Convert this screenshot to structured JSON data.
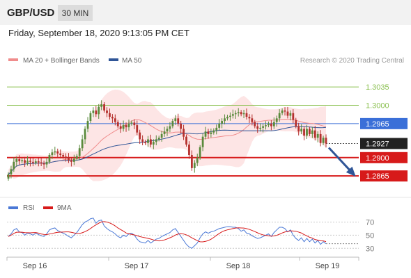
{
  "header": {
    "symbol": "GBP/USD",
    "timeframe": "30 MIN"
  },
  "datetime": "Friday, September 18, 2020 9:13:05 PM CET",
  "legend": [
    {
      "label": "MA 20 + Bollinger Bands",
      "color": "#f08c8c"
    },
    {
      "label": "MA 50",
      "color": "#2f5597"
    }
  ],
  "copyright": "Research © 2020 Trading Central",
  "colors": {
    "up_candle": "#5a8a3c",
    "down_candle": "#b5312e",
    "bands_fill": "#fde0e0",
    "ma20": "#f08c8c",
    "ma50": "#2f5597",
    "support": "#d71a1a",
    "resistance": "#8cc152",
    "pivot": "#3a6fd8",
    "current": "#222222",
    "arrow": "#2f5597",
    "rsi": "#4a78d6",
    "rsi_ma": "#d71a1a"
  },
  "chart_data": [
    {
      "type": "candlestick",
      "y_range": [
        1.284,
        1.3075
      ],
      "x_labels": [
        "Sep 16",
        "Sep 17",
        "Sep 18",
        "Sep 19"
      ],
      "levels": [
        {
          "value": 1.3035,
          "label": "1.3035",
          "kind": "resistance"
        },
        {
          "value": 1.3,
          "label": "1.3000",
          "kind": "resistance"
        },
        {
          "value": 1.2965,
          "label": "1.2965",
          "kind": "pivot"
        },
        {
          "value": 1.2927,
          "label": "1.2927",
          "kind": "current"
        },
        {
          "value": 1.29,
          "label": "1.2900",
          "kind": "support"
        },
        {
          "value": 1.2865,
          "label": "1.2865",
          "kind": "support"
        }
      ],
      "close": [
        1.2868,
        1.2878,
        1.2892,
        1.2897,
        1.2893,
        1.2895,
        1.289,
        1.2894,
        1.2892,
        1.289,
        1.2893,
        1.2891,
        1.2889,
        1.2887,
        1.2892,
        1.2905,
        1.291,
        1.2912,
        1.2908,
        1.2905,
        1.2902,
        1.29,
        1.2895,
        1.2892,
        1.2898,
        1.2903,
        1.2918,
        1.2935,
        1.2955,
        1.297,
        1.2985,
        1.299,
        1.2983,
        1.2997,
        1.3002,
        1.299,
        1.2985,
        1.2978,
        1.2975,
        1.2968,
        1.296,
        1.2955,
        1.2962,
        1.2958,
        1.2965,
        1.2967,
        1.2962,
        1.2948,
        1.2935,
        1.293,
        1.2928,
        1.2935,
        1.2925,
        1.293,
        1.2935,
        1.2938,
        1.2945,
        1.295,
        1.2955,
        1.296,
        1.297,
        1.2975,
        1.2965,
        1.2955,
        1.294,
        1.2925,
        1.2905,
        1.288,
        1.289,
        1.29,
        1.292,
        1.294,
        1.295,
        1.2945,
        1.2948,
        1.2952,
        1.2957,
        1.2965,
        1.297,
        1.2975,
        1.2978,
        1.298,
        1.2983,
        1.2985,
        1.2987,
        1.2983,
        1.2985,
        1.2978,
        1.2975,
        1.2968,
        1.296,
        1.2955,
        1.2957,
        1.296,
        1.2962,
        1.2965,
        1.296,
        1.2968,
        1.2975,
        1.2985,
        1.299,
        1.2988,
        1.298,
        1.2985,
        1.2972,
        1.296,
        1.295,
        1.2955,
        1.2942,
        1.2955,
        1.2945,
        1.2952,
        1.2938,
        1.2945,
        1.2928,
        1.2938,
        1.2927
      ],
      "rsi_range": [
        25,
        80
      ],
      "rsi_levels": [
        70,
        50,
        30
      ],
      "rsi": [
        48,
        52,
        58,
        60,
        55,
        54,
        50,
        53,
        52,
        50,
        53,
        51,
        49,
        48,
        52,
        58,
        60,
        61,
        57,
        55,
        53,
        51,
        48,
        46,
        50,
        54,
        60,
        66,
        70,
        72,
        75,
        76,
        68,
        72,
        73,
        64,
        60,
        57,
        55,
        52,
        48,
        46,
        50,
        48,
        52,
        53,
        50,
        44,
        40,
        39,
        38,
        42,
        38,
        41,
        44,
        45,
        48,
        50,
        52,
        54,
        58,
        60,
        54,
        48,
        42,
        36,
        32,
        30,
        34,
        38,
        46,
        52,
        55,
        53,
        55,
        56,
        58,
        60,
        61,
        62,
        63,
        63,
        62,
        62,
        60,
        56,
        58,
        53,
        52,
        49,
        47,
        45,
        46,
        48,
        50,
        52,
        48,
        54,
        58,
        62,
        62,
        60,
        55,
        58,
        50,
        45,
        42,
        46,
        40,
        45,
        40,
        44,
        38,
        42,
        36,
        40,
        37
      ]
    }
  ]
}
